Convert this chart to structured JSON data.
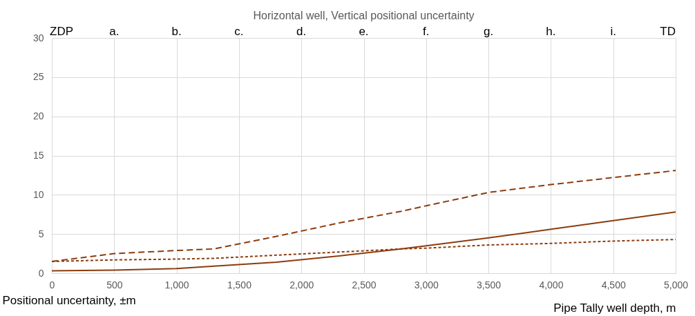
{
  "chart_data": {
    "type": "line",
    "title": "Horizontal well, Vertical positional uncertainty",
    "xlabel": "Pipe Tally well depth, m",
    "ylabel": "Positional uncertainty, ±m",
    "x": [
      0,
      500,
      1000,
      1300,
      1800,
      2300,
      2800,
      3000,
      3500,
      4000,
      4500,
      5000
    ],
    "series": [
      {
        "color": "#8c3b0c",
        "line_style": "dashed",
        "values": [
          1.5,
          2.5,
          2.9,
          3.1,
          4.7,
          6.4,
          7.9,
          8.6,
          10.3,
          11.3,
          12.2,
          13.1
        ]
      },
      {
        "color": "#8c3b0c",
        "line_style": "solid",
        "values": [
          0.3,
          0.4,
          0.6,
          0.9,
          1.4,
          2.2,
          3.1,
          3.5,
          4.5,
          5.6,
          6.7,
          7.8
        ]
      },
      {
        "color": "#8c3b0c",
        "line_style": "dotted",
        "values": [
          1.5,
          1.7,
          1.8,
          1.9,
          2.3,
          2.7,
          3.1,
          3.2,
          3.6,
          3.8,
          4.1,
          4.3
        ]
      }
    ],
    "xlim": [
      0,
      5000
    ],
    "xticks": [
      {
        "value": 0,
        "label": "0"
      },
      {
        "value": 500,
        "label": "500"
      },
      {
        "value": 1000,
        "label": "1,000"
      },
      {
        "value": 1500,
        "label": "1,500"
      },
      {
        "value": 2000,
        "label": "2,000"
      },
      {
        "value": 2500,
        "label": "2,500"
      },
      {
        "value": 3000,
        "label": "3,000"
      },
      {
        "value": 3500,
        "label": "3,500"
      },
      {
        "value": 4000,
        "label": "4,000"
      },
      {
        "value": 4500,
        "label": "4,500"
      },
      {
        "value": 5000,
        "label": "5,000"
      }
    ],
    "annotations": [
      "ZDP",
      "a.",
      "b.",
      "c.",
      "d.",
      "e.",
      "f.",
      "g.",
      "h.",
      "i.",
      "TD"
    ],
    "ylim": [
      0,
      30
    ],
    "yticks": [
      0,
      5,
      10,
      15,
      20,
      25,
      30
    ],
    "grid": true,
    "marker": "none"
  }
}
